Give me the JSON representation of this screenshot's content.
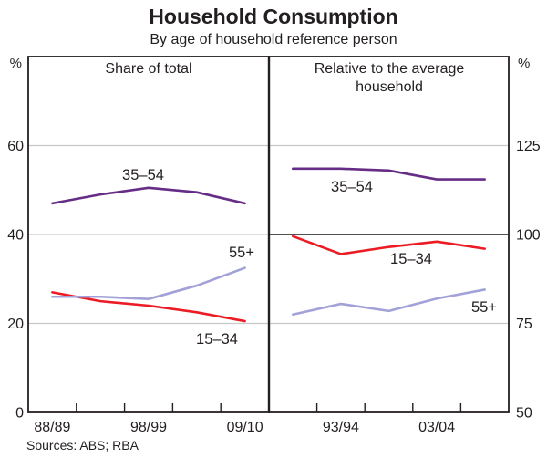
{
  "title": "Household Consumption",
  "subtitle": "By age of household reference person",
  "sources": "Sources: ABS; RBA",
  "colors": {
    "purple": "#652d85",
    "red": "#ec1c24",
    "lavender": "#a2a2d8",
    "grid": "#c9c9c9",
    "axis": "#231f20",
    "reference_line": "#3a3a3a"
  },
  "chart_data": {
    "type": "line",
    "categories": [
      "1988/89",
      "1993/94",
      "1998/99",
      "2003/04",
      "2009/10"
    ],
    "panels": [
      {
        "title_lines": [
          "Share of total"
        ],
        "unit": "%",
        "ylim": [
          0,
          80
        ],
        "yticks": [
          0,
          20,
          40,
          60
        ],
        "gridlines": [
          20,
          40,
          60
        ],
        "x_labels": [
          {
            "slot": 0,
            "text": "88/89"
          },
          {
            "slot": 2,
            "text": "98/99"
          },
          {
            "slot": 4,
            "text": "09/10"
          }
        ],
        "series": [
          {
            "name": "35–54",
            "color": "purple",
            "values": [
              47,
              49,
              50.5,
              49.5,
              47
            ]
          },
          {
            "name": "15–34",
            "color": "red",
            "values": [
              27,
              25,
              24,
              22.5,
              20.5
            ]
          },
          {
            "name": "55+",
            "color": "lavender",
            "values": [
              26,
              26,
              25.5,
              28.5,
              32.5
            ]
          }
        ]
      },
      {
        "title_lines": [
          "Relative to the average",
          "household"
        ],
        "unit": "%",
        "ylim": [
          50,
          150
        ],
        "yticks": [
          50,
          75,
          100,
          125
        ],
        "gridlines": [
          75,
          125
        ],
        "reference_line": 100,
        "x_labels": [
          {
            "slot": 1,
            "text": "93/94"
          },
          {
            "slot": 3,
            "text": "03/04"
          }
        ],
        "series": [
          {
            "name": "35–54",
            "color": "purple",
            "values": [
              118.5,
              118.5,
              118,
              115.5,
              115.5
            ]
          },
          {
            "name": "15–34",
            "color": "red",
            "values": [
              99.5,
              94.5,
              96.5,
              98,
              96
            ]
          },
          {
            "name": "55+",
            "color": "lavender",
            "values": [
              77.5,
              80.5,
              78.5,
              82,
              84.5
            ]
          }
        ]
      }
    ]
  }
}
